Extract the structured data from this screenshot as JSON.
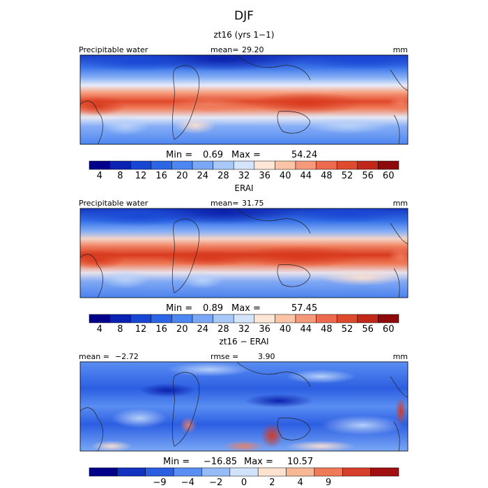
{
  "figure_title": "DJF",
  "colors": {
    "abs_scale": [
      "#00008b",
      "#0a22b4",
      "#1846d4",
      "#2c66e6",
      "#4c86f2",
      "#7aa8f6",
      "#a8c8fa",
      "#d4e4fc",
      "#fde6d6",
      "#fcc4a6",
      "#f6987a",
      "#ee6a4e",
      "#de4a2c",
      "#c2281a",
      "#8e0a0a"
    ],
    "diff_scale": [
      "#00008b",
      "#1232c0",
      "#2c5ee2",
      "#5a8ef2",
      "#96bcf8",
      "#d0e2fc",
      "#fde2d0",
      "#f8b896",
      "#ee7a58",
      "#d6402a",
      "#a01010"
    ]
  },
  "chart_data": [
    {
      "type": "heatmap",
      "title": "zt16 (yrs 1-1)",
      "variable_label": "Precipitable water",
      "mean_label": "mean=",
      "mean": "29.20",
      "units": "mm",
      "min_label": "Min =",
      "min": "0.69",
      "max_label": "Max =",
      "max": "54.24",
      "colorbar_ticks": [
        "4",
        "8",
        "12",
        "16",
        "20",
        "24",
        "28",
        "32",
        "36",
        "40",
        "44",
        "48",
        "52",
        "56",
        "60"
      ]
    },
    {
      "type": "heatmap",
      "title": "ERAI",
      "variable_label": "Precipitable water",
      "mean_label": "mean=",
      "mean": "31.75",
      "units": "mm",
      "min_label": "Min =",
      "min": "0.89",
      "max_label": "Max =",
      "max": "57.45",
      "colorbar_ticks": [
        "4",
        "8",
        "12",
        "16",
        "20",
        "24",
        "28",
        "32",
        "36",
        "40",
        "44",
        "48",
        "52",
        "56",
        "60"
      ]
    },
    {
      "type": "heatmap",
      "title": "zt16 - ERAI",
      "mean_label": "mean =",
      "mean": "-2.72",
      "rmse_label": "rmse =",
      "rmse": "3.90",
      "units": "mm",
      "min_label": "Min =",
      "min": "-16.85",
      "max_label": "Max =",
      "max": "10.57",
      "colorbar_ticks": [
        "-9",
        "-4",
        "-2",
        "0",
        "2",
        "4",
        "9"
      ]
    }
  ]
}
